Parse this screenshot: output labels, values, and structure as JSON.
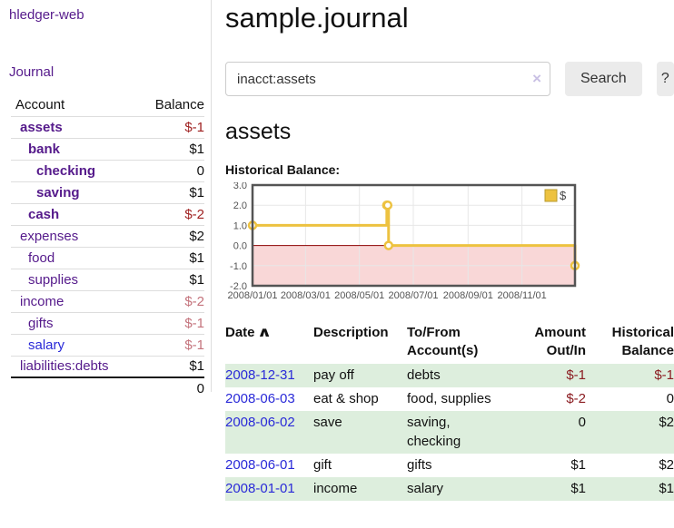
{
  "app": {
    "title": "hledger-web",
    "nav_journal_label": "Journal"
  },
  "colors": {
    "link_visited_purple": "#551a8b",
    "link_blue": "#2a2ad8",
    "negative_strong": "#9e1f1f",
    "negative_soft": "#c4737c",
    "negative_table": "#8b1c21",
    "row_shaded_green": "#ddeedd",
    "series_gold": "#edc240",
    "negative_region_pink": "#f9d7d7",
    "zero_line_red": "#8b0000",
    "chart_border_gray": "#545454",
    "button_gray": "#ebebeb"
  },
  "sidebar": {
    "headers": {
      "account": "Account",
      "balance": "Balance"
    },
    "accounts": [
      {
        "name": "assets",
        "depth": 1,
        "bold": true,
        "link": "purple",
        "balance": "$-1",
        "tone": "neg-strong"
      },
      {
        "name": "bank",
        "depth": 2,
        "bold": true,
        "link": "purple",
        "balance": "$1",
        "tone": "normal"
      },
      {
        "name": "checking",
        "depth": 3,
        "bold": true,
        "link": "purple",
        "balance": "0",
        "tone": "normal"
      },
      {
        "name": "saving",
        "depth": 3,
        "bold": true,
        "link": "purple",
        "balance": "$1",
        "tone": "normal"
      },
      {
        "name": "cash",
        "depth": 2,
        "bold": true,
        "link": "purple",
        "balance": "$-2",
        "tone": "neg-strong"
      },
      {
        "name": "expenses",
        "depth": 1,
        "bold": false,
        "link": "purple",
        "balance": "$2",
        "tone": "normal"
      },
      {
        "name": "food",
        "depth": 2,
        "bold": false,
        "link": "purple",
        "balance": "$1",
        "tone": "normal"
      },
      {
        "name": "supplies",
        "depth": 2,
        "bold": false,
        "link": "purple",
        "balance": "$1",
        "tone": "normal"
      },
      {
        "name": "income",
        "depth": 1,
        "bold": false,
        "link": "purple",
        "balance": "$-2",
        "tone": "neg-soft"
      },
      {
        "name": "gifts",
        "depth": 2,
        "bold": false,
        "link": "purple",
        "balance": "$-1",
        "tone": "neg-soft"
      },
      {
        "name": "salary",
        "depth": 2,
        "bold": false,
        "link": "blue",
        "balance": "$-1",
        "tone": "neg-soft"
      },
      {
        "name": "liabilities:debts",
        "depth": 1,
        "bold": false,
        "link": "purple",
        "balance": "$1",
        "tone": "normal"
      }
    ],
    "total": "0"
  },
  "main": {
    "title": "sample.journal",
    "search": {
      "value": "inacct:assets",
      "clear_glyph": "×",
      "button_label": "Search",
      "help_label": "?"
    },
    "account_heading": "assets",
    "chart_label": "Historical Balance:"
  },
  "chart_data": {
    "type": "line",
    "line_style": "step",
    "title": "Historical Balance",
    "xlim_days": [
      0,
      365
    ],
    "ylim": [
      -2,
      3
    ],
    "grid": true,
    "y_ticks": [
      {
        "label": "3.0",
        "value": 3
      },
      {
        "label": "2.0",
        "value": 2
      },
      {
        "label": "1.0",
        "value": 1
      },
      {
        "label": "0.0",
        "value": 0
      },
      {
        "label": "-1.0",
        "value": -1
      },
      {
        "label": "-2.0",
        "value": -2
      }
    ],
    "x_ticks": [
      {
        "label": "2008/01/01",
        "day": 0
      },
      {
        "label": "2008/03/01",
        "day": 60
      },
      {
        "label": "2008/05/01",
        "day": 121
      },
      {
        "label": "2008/07/01",
        "day": 182
      },
      {
        "label": "2008/09/01",
        "day": 244
      },
      {
        "label": "2008/11/01",
        "day": 305
      }
    ],
    "legend": {
      "label": "$",
      "position": "top-right"
    },
    "series": [
      {
        "name": "$",
        "color": "#edc240",
        "points": [
          {
            "date": "2008-01-01",
            "day": 0,
            "value": 1
          },
          {
            "date": "2008-06-01",
            "day": 152,
            "value": 2
          },
          {
            "date": "2008-06-02",
            "day": 153,
            "value": 2
          },
          {
            "date": "2008-06-03",
            "day": 154,
            "value": 0
          },
          {
            "date": "2008-12-31",
            "day": 365,
            "value": -1
          }
        ]
      }
    ],
    "negative_region_color": "#f9d7d7",
    "zero_line_color": "#8b0000"
  },
  "transactions": {
    "headers": {
      "date": "Date",
      "description": "Description",
      "accounts_l1": "To/From",
      "accounts_l2": "Account(s)",
      "amount_l1": "Amount",
      "amount_l2": "Out/In",
      "balance_l1": "Historical",
      "balance_l2": "Balance"
    },
    "sort": {
      "column": "date",
      "direction": "asc",
      "glyph": "∧"
    },
    "rows": [
      {
        "date": "2008-12-31",
        "description": "pay off",
        "accounts": "debts",
        "amount": "$-1",
        "amount_neg": true,
        "balance": "$-1",
        "balance_neg": true,
        "shaded": true
      },
      {
        "date": "2008-06-03",
        "description": "eat & shop",
        "accounts": "food, supplies",
        "amount": "$-2",
        "amount_neg": true,
        "balance": "0",
        "balance_neg": false,
        "shaded": false
      },
      {
        "date": "2008-06-02",
        "description": "save",
        "accounts": "saving, checking",
        "amount": "0",
        "amount_neg": false,
        "balance": "$2",
        "balance_neg": false,
        "shaded": true
      },
      {
        "date": "2008-06-01",
        "description": "gift",
        "accounts": "gifts",
        "amount": "$1",
        "amount_neg": false,
        "balance": "$2",
        "balance_neg": false,
        "shaded": false
      },
      {
        "date": "2008-01-01",
        "description": "income",
        "accounts": "salary",
        "amount": "$1",
        "amount_neg": false,
        "balance": "$1",
        "balance_neg": false,
        "shaded": true
      }
    ]
  }
}
